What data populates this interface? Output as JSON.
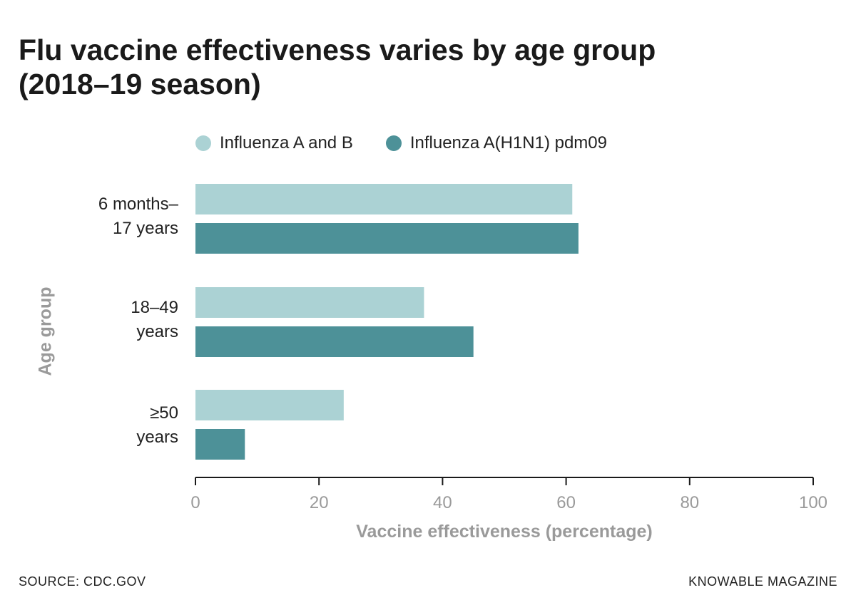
{
  "chart_data": {
    "type": "bar",
    "orientation": "horizontal",
    "title_lines": [
      "Flu vaccine effectiveness varies by age group",
      "(2018–19 season)"
    ],
    "categories": [
      {
        "lines": [
          "6 months–",
          "17 years"
        ]
      },
      {
        "lines": [
          "18–49",
          "years"
        ]
      },
      {
        "lines": [
          "≥50",
          "years"
        ]
      }
    ],
    "series": [
      {
        "name": "Influenza A and B",
        "color": "#abd2d4",
        "values": [
          61,
          37,
          24
        ]
      },
      {
        "name": "Influenza A(H1N1) pdm09",
        "color": "#4d9198",
        "values": [
          62,
          45,
          8
        ]
      }
    ],
    "xlabel": "Vaccine effectiveness (percentage)",
    "ylabel": "Age group",
    "xlim": [
      0,
      100
    ],
    "xticks": [
      0,
      20,
      40,
      60,
      80,
      100
    ],
    "grid": false,
    "legend_position": "top"
  },
  "footer": {
    "source": "SOURCE: CDC.GOV",
    "credit": "KNOWABLE MAGAZINE"
  }
}
